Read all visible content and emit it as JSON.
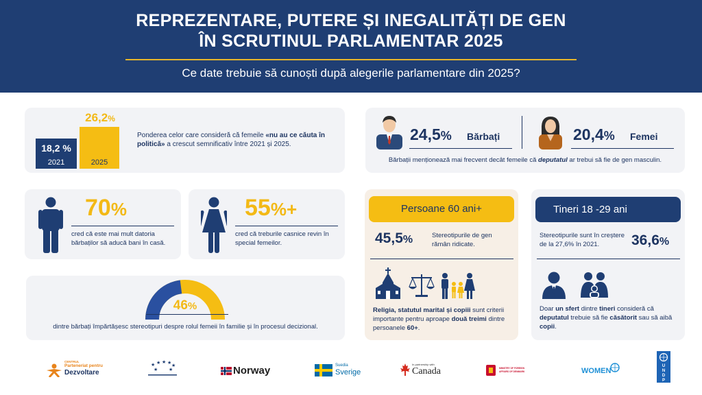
{
  "header": {
    "title_line1": "REPREZENTARE, PUTERE ȘI INEGALITĂȚI DE GEN",
    "title_line2": "ÎN SCRUTINUL PARLAMENTAR 2025",
    "subtitle": "Ce date trebuie să cunoști după alegerile parlamentare din 2025?"
  },
  "card_change": {
    "left_value": "18,2 %",
    "left_year": "2021",
    "right_value": "26,2",
    "right_unit": "%",
    "right_year": "2025",
    "text_pre": "Ponderea celor care consideră că femeile ",
    "text_bold": "«nu au ce căuta în politică»",
    "text_post": " a crescut semnificativ între 2021 și 2025."
  },
  "card_deputy": {
    "men_value": "24,5",
    "men_unit": "%",
    "men_label": "Bărbați",
    "women_value": "20,4",
    "women_unit": "%",
    "women_label": "Femei",
    "note_pre": "Bărbații menționează mai frecvent decât femeile că ",
    "note_italic": "deputatul",
    "note_post": " ar trebui să fie de gen masculin."
  },
  "card_70": {
    "value": "70",
    "unit": "%",
    "text": "cred că este mai mult datoria bărbaților să aducă bani în casă."
  },
  "card_55": {
    "value": "55",
    "unit": "%+",
    "text": "cred că treburile casnice revin în special femeilor."
  },
  "card_46": {
    "value": "46",
    "unit": "%",
    "percent": 46,
    "text": "dintre bărbați împărtășesc stereotipuri despre rolul femeii în familie și în procesul decizional."
  },
  "card_60plus": {
    "pill": "Persoane 60 ani+",
    "value": "45,5",
    "unit": "%",
    "text": "Stereotipurile de gen rămân ridicate.",
    "note_bold1": "Religia, statutul marital și copiii",
    "note_mid": " sunt criterii importante pentru aproape ",
    "note_bold2": "două treimi",
    "note_mid2": " dintre persoanele ",
    "note_bold3": "60+",
    "note_end": "."
  },
  "card_youth": {
    "pill": "Tineri 18 -29 ani",
    "text": "Stereotipurile sunt în creștere de la 27,6% în 2021.",
    "value": "36,6",
    "unit": "%",
    "note_a": "Doar ",
    "note_b": "un sfert",
    "note_c": " dintre ",
    "note_d": "tineri",
    "note_e": " consideră că ",
    "note_f": "deputatul",
    "note_g": "  trebuie să fie ",
    "note_h": "căsătorit",
    "note_i": " sau să aibă ",
    "note_j": "copii",
    "note_k": "."
  },
  "logos": {
    "centrul_small": "CENTRUL",
    "centrul_line1": "Parteneriat pentru",
    "centrul_line2": "Dezvoltare",
    "norway": "Norway",
    "sweden_small": "Suedia",
    "sweden": "Sverige",
    "canada_small": "In partnership with",
    "canada": "Canada",
    "denmark": "MINISTRY OF FOREIGN AFFAIRS OF DENMARK",
    "unwomen": "WOMEN",
    "undp": "U N D P"
  },
  "colors": {
    "navy": "#1f3e73",
    "gold": "#f5bd13",
    "card_bg": "#f2f3f6",
    "beige": "#f7efe6"
  }
}
